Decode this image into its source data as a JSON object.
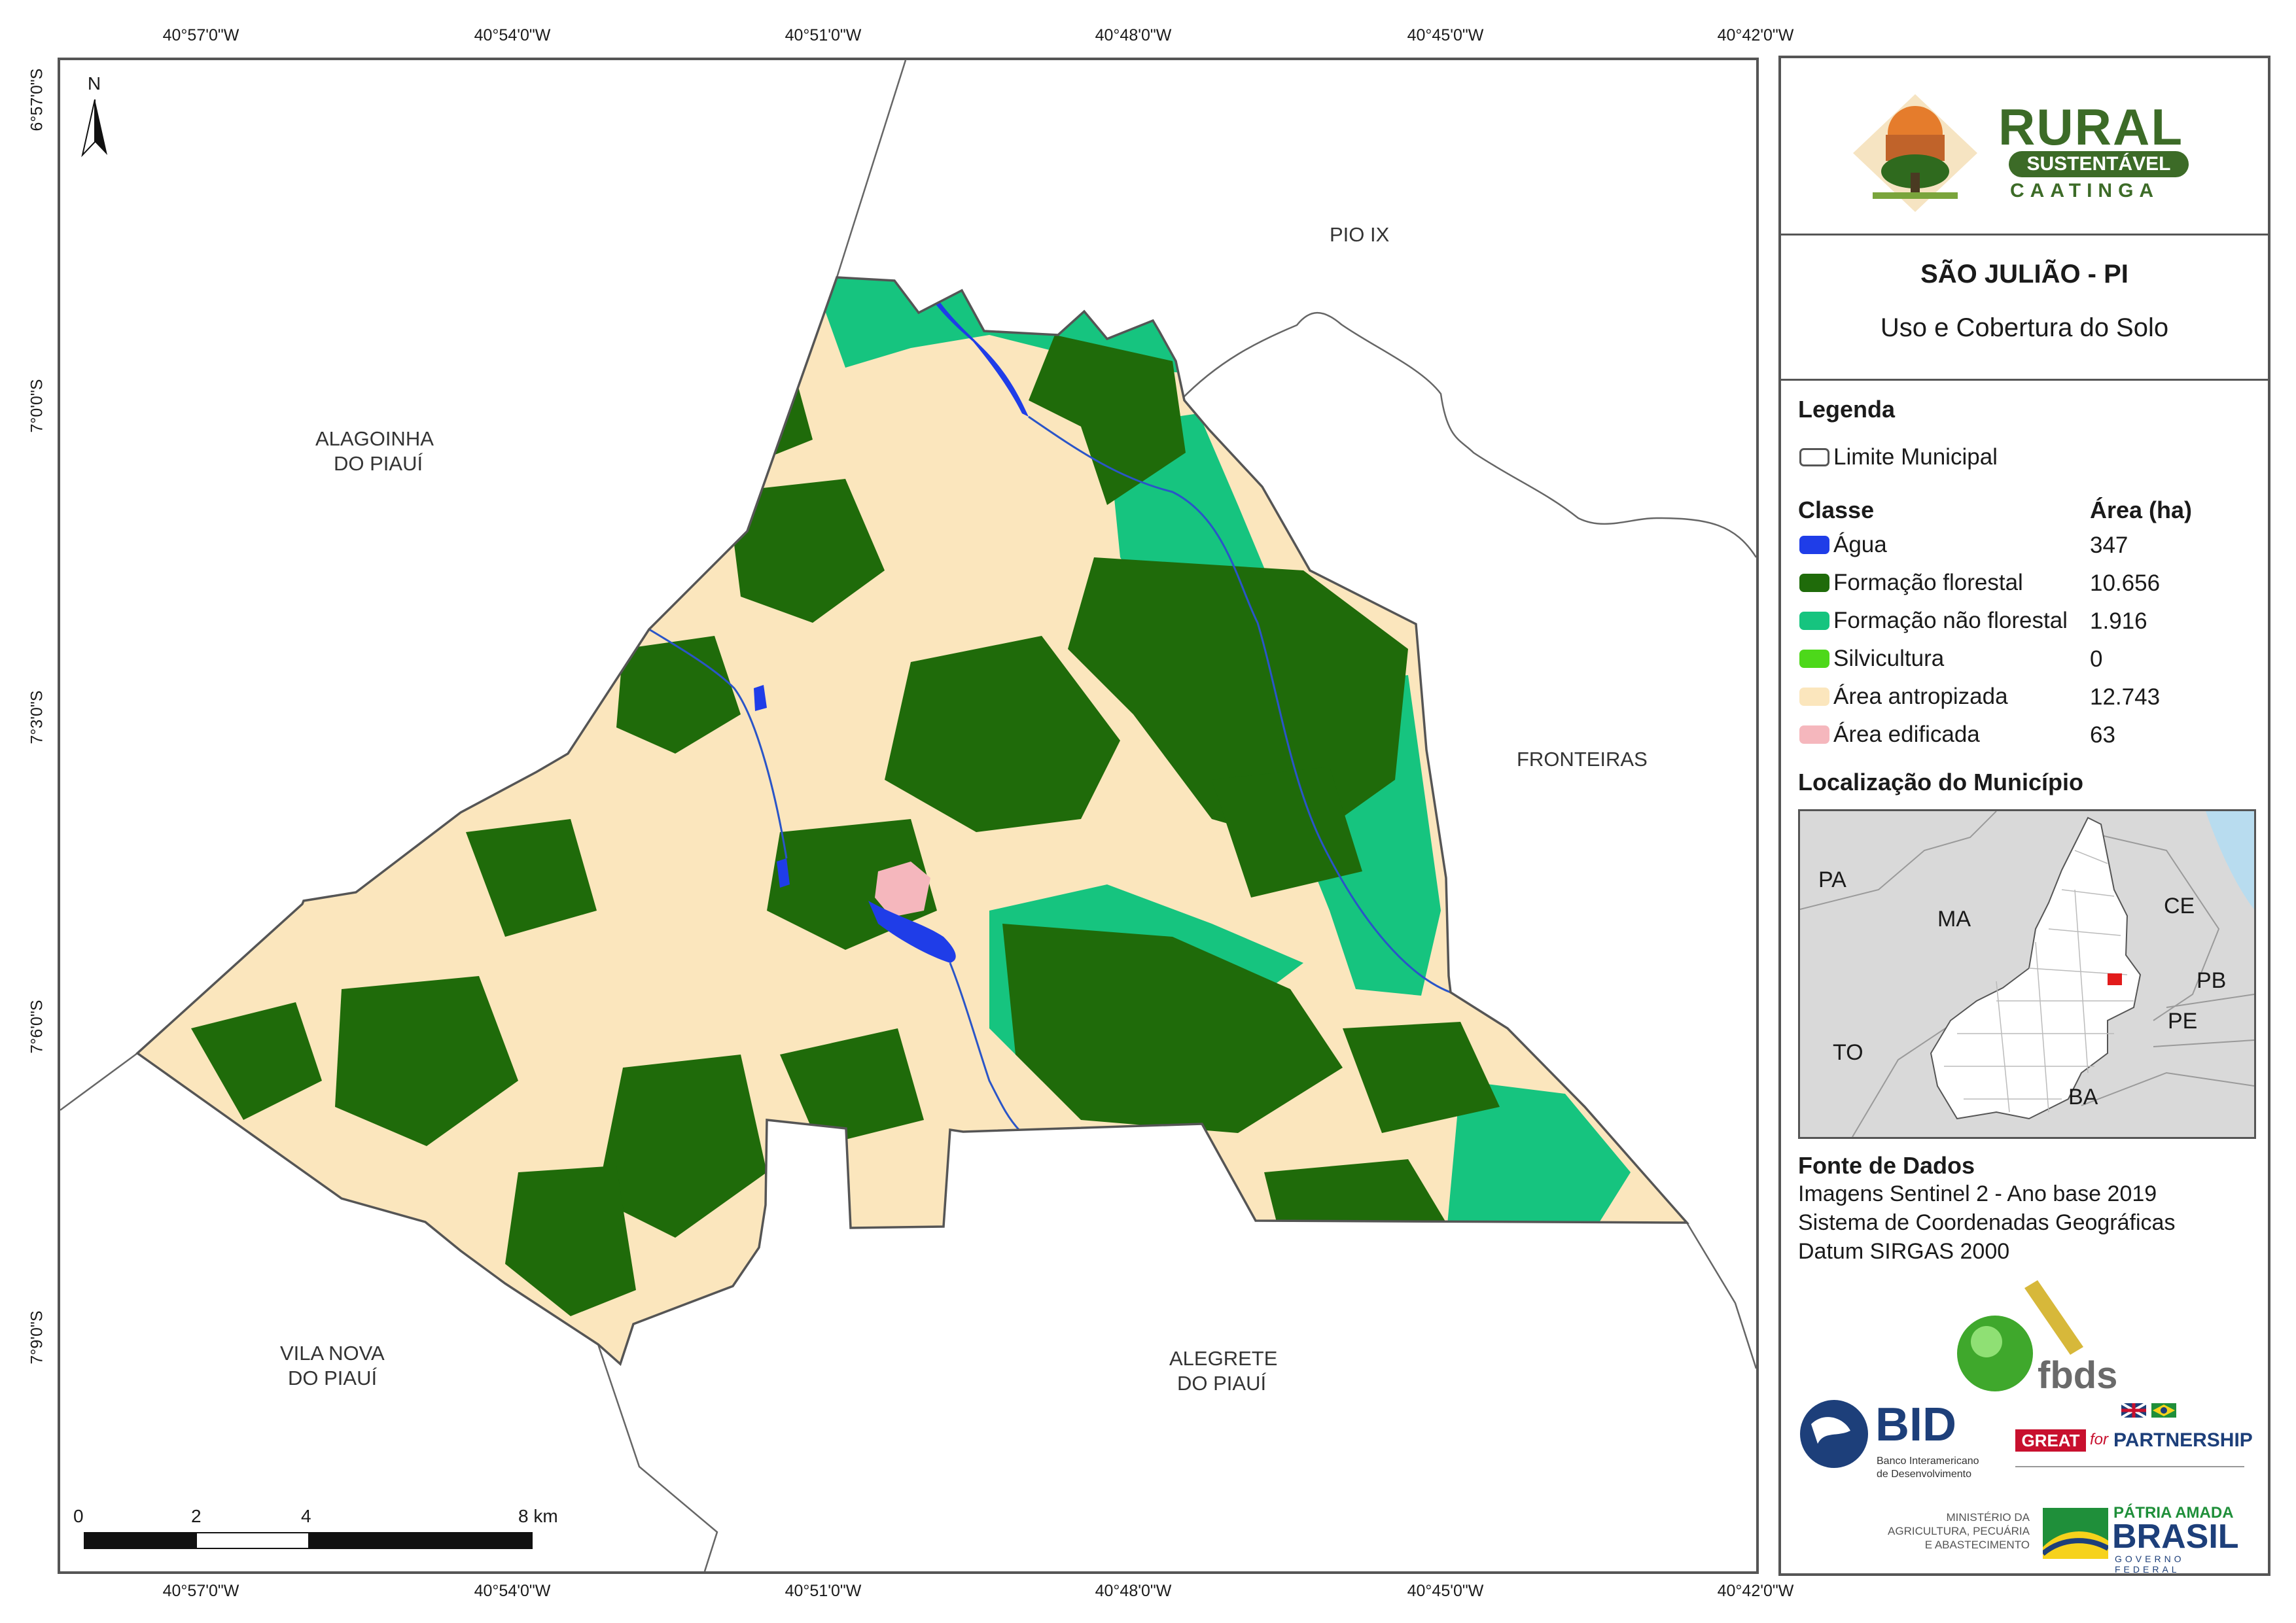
{
  "coordinates": {
    "top": [
      "40°57'0\"W",
      "40°54'0\"W",
      "40°51'0\"W",
      "40°48'0\"W",
      "40°45'0\"W",
      "40°42'0\"W"
    ],
    "bottom": [
      "40°57'0\"W",
      "40°54'0\"W",
      "40°51'0\"W",
      "40°48'0\"W",
      "40°45'0\"W",
      "40°42'0\"W"
    ],
    "left": [
      "6°57'0\"S",
      "7°0'0\"S",
      "7°3'0\"S",
      "7°6'0\"S",
      "7°9'0\"S"
    ]
  },
  "north_arrow": "N",
  "places": {
    "pio_ix": "PIO IX",
    "alagoinha_1": "ALAGOINHA",
    "alagoinha_2": "DO PIAUÍ",
    "fronteiras": "FRONTEIRAS",
    "vila_nova_1": "VILA NOVA",
    "vila_nova_2": "DO PIAUÍ",
    "alegrete_1": "ALEGRETE",
    "alegrete_2": "DO PIAUÍ"
  },
  "scale_bar": {
    "labels": [
      "0",
      "2",
      "4",
      "8 km"
    ]
  },
  "colors": {
    "agua": "#1f3de8",
    "formacao_florestal": "#1f6b0a",
    "formacao_nao_florestal": "#16c47f",
    "silvicultura": "#4dd81a",
    "area_antropizada": "#fbe6bd",
    "area_edificada": "#f5b7bd",
    "border": "#555555"
  },
  "logo": {
    "rural": "RURAL",
    "sustentavel": "SUSTENTÁVEL",
    "caatinga": "CAATINGA"
  },
  "title": {
    "main": "SÃO JULIÃO - PI",
    "subtitle": "Uso e Cobertura do Solo"
  },
  "legend": {
    "heading": "Legenda",
    "limite": "Limite Municipal",
    "class_header": "Classe",
    "area_header": "Área (ha)",
    "classes": [
      {
        "label": "Água",
        "area": "347"
      },
      {
        "label": "Formação florestal",
        "area": "10.656"
      },
      {
        "label": "Formação não florestal",
        "area": "1.916"
      },
      {
        "label": "Silvicultura",
        "area": "0"
      },
      {
        "label": "Área antropizada",
        "area": "12.743"
      },
      {
        "label": "Área edificada",
        "area": "63"
      }
    ]
  },
  "locator": {
    "heading": "Localização do Município",
    "states": [
      "PA",
      "MA",
      "CE",
      "PB",
      "PE",
      "TO",
      "BA"
    ]
  },
  "sources": {
    "heading": "Fonte de Dados",
    "lines": [
      "Imagens Sentinel 2 - Ano base 2019",
      "Sistema de Coordenadas Geográficas",
      "Datum SIRGAS 2000"
    ]
  },
  "partner_logos": {
    "fbds": "fbds",
    "bid": "BID",
    "bid_sub_1": "Banco Interamericano",
    "bid_sub_2": "de Desenvolvimento",
    "great": "GREAT",
    "for": "for",
    "partnership": "PARTNERSHIP",
    "ministerio_1": "MINISTÉRIO DA",
    "ministerio_2": "AGRICULTURA, PECUÁRIA",
    "ministerio_3": "E ABASTECIMENTO",
    "patria": "PÁTRIA AMADA",
    "brasil": "BRASIL",
    "governo": "GOVERNO FEDERAL"
  }
}
